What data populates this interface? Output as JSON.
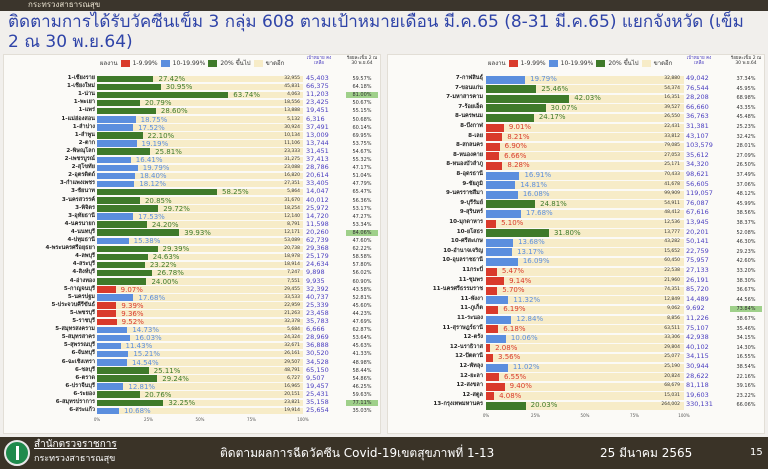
{
  "header": {
    "org": "กระทรวงสาธารณสุข",
    "title": "ติดตามการได้รับวัคซีนเข็ม 3 กลุ่ม 608 ตามเป้าหมายเดือน มี.ค.65 (8-31 มี.ค.65) แยกจังหวัด (เข็ม 2 ณ 30 พ.ย.64)"
  },
  "legend": {
    "title": "ผลงาน",
    "items": [
      {
        "label": "1-9.99%",
        "color": "#d93a2b"
      },
      {
        "label": "10-19.99%",
        "color": "#5b8ede"
      },
      {
        "label": "20% ขึ้นไป",
        "color": "#3f7a2a"
      },
      {
        "label": "ขาดอีก",
        "color": "#f7ecc8"
      }
    ],
    "col_target": "เป้าหมาย คงเหลือ",
    "col_dose2": "ร้อยละเข็ม 2 ณ 30 พ.ย.64"
  },
  "chart_data": [
    {
      "type": "bar",
      "orientation": "horizontal",
      "stacked": true,
      "xlim": [
        0,
        100
      ],
      "x_ticks": [
        "0%",
        "25%",
        "50%",
        "75%",
        "100%"
      ],
      "columns": [
        "province",
        "percent",
        "remaining",
        "target",
        "dose2_percent"
      ],
      "rows": [
        [
          "1-เชียงราย",
          27.42,
          "32,955",
          "45,403",
          "59.57%"
        ],
        [
          "1-เชียงใหม่",
          30.95,
          "45,831",
          "66,375",
          "64.18%"
        ],
        [
          "1-น่าน",
          63.74,
          "4,063",
          "11,203",
          "81.00%"
        ],
        [
          "1-พะเยา",
          20.79,
          "18,556",
          "23,425",
          "50.67%"
        ],
        [
          "1-แพร่",
          28.6,
          "13,888",
          "19,451",
          "55.15%"
        ],
        [
          "1-แม่ฮ่องสอน",
          18.75,
          "5,132",
          "6,316",
          "50.68%"
        ],
        [
          "1-ลำปาง",
          17.52,
          "30,924",
          "37,491",
          "60.14%"
        ],
        [
          "1-ลำพูน",
          22.1,
          "10,134",
          "13,009",
          "69.95%"
        ],
        [
          "2-ตาก",
          19.19,
          "11,106",
          "13,744",
          "53.75%"
        ],
        [
          "2-พิษณุโลก",
          25.81,
          "23,333",
          "31,451",
          "54.67%"
        ],
        [
          "2-เพชรบูรณ์",
          16.41,
          "31,275",
          "37,413",
          "55.32%"
        ],
        [
          "2-สุโขทัย",
          19.79,
          "23,088",
          "28,786",
          "47.17%"
        ],
        [
          "2-อุตรดิตถ์",
          18.4,
          "16,820",
          "20,614",
          "51.04%"
        ],
        [
          "3-กำแพงเพชร",
          18.12,
          "27,351",
          "33,405",
          "47.79%"
        ],
        [
          "3-ชัยนาท",
          58.25,
          "5,864",
          "14,047",
          "65.47%"
        ],
        [
          "3-นครสวรรค์",
          20.85,
          "31,670",
          "40,012",
          "56.36%"
        ],
        [
          "3-พิจิตร",
          29.72,
          "18,254",
          "25,972",
          "53.17%"
        ],
        [
          "3-อุทัยธานี",
          17.53,
          "12,140",
          "14,720",
          "47.27%"
        ],
        [
          "4-นครนายก",
          24.2,
          "8,791",
          "11,598",
          "53.34%"
        ],
        [
          "4-นนทบุรี",
          39.93,
          "12,171",
          "20,260",
          "84.06%"
        ],
        [
          "4-ปทุมธานี",
          15.38,
          "53,089",
          "62,739",
          "47.60%"
        ],
        [
          "4-พระนครศรีอยุธยา",
          29.39,
          "20,738",
          "29,368",
          "62.22%"
        ],
        [
          "4-ลพบุรี",
          24.63,
          "18,978",
          "25,179",
          "58.58%"
        ],
        [
          "4-สระบุรี",
          23.22,
          "18,914",
          "24,634",
          "57.80%"
        ],
        [
          "4-สิงห์บุรี",
          26.78,
          "7,247",
          "9,898",
          "56.02%"
        ],
        [
          "4-อ่างทอง",
          24.0,
          "7,551",
          "9,935",
          "60.90%"
        ],
        [
          "5-กาญจนบุรี",
          9.07,
          "29,455",
          "32,392",
          "43.58%"
        ],
        [
          "5-นครปฐม",
          17.68,
          "33,533",
          "40,737",
          "52.81%"
        ],
        [
          "5-ประจวบคีรีขันธ์",
          9.39,
          "22,959",
          "25,339",
          "45.60%"
        ],
        [
          "5-เพชรบุรี",
          9.36,
          "21,263",
          "23,458",
          "44.23%"
        ],
        [
          "5-ราชบุรี",
          9.52,
          "32,378",
          "35,783",
          "47.69%"
        ],
        [
          "5-สมุทรสงคราม",
          14.73,
          "5,684",
          "6,666",
          "62.87%"
        ],
        [
          "5-สมุทรสาคร",
          16.03,
          "24,324",
          "28,969",
          "53.64%"
        ],
        [
          "5-สุพรรณบุรี",
          11.43,
          "32,671",
          "36,888",
          "45.63%"
        ],
        [
          "6-จันทบุรี",
          15.21,
          "26,161",
          "30,520",
          "41.33%"
        ],
        [
          "6-ฉะเชิงเทรา",
          14.54,
          "29,507",
          "34,528",
          "48.98%"
        ],
        [
          "6-ชลบุรี",
          25.11,
          "48,791",
          "65,150",
          "58.44%"
        ],
        [
          "6-ตราด",
          29.24,
          "6,727",
          "9,507",
          "54.86%"
        ],
        [
          "6-ปราจีนบุรี",
          12.81,
          "16,965",
          "19,457",
          "46.25%"
        ],
        [
          "6-ระยอง",
          20.76,
          "20,151",
          "25,431",
          "59.63%"
        ],
        [
          "6-สมุทรปราการ",
          32.25,
          "23,821",
          "35,158",
          "77.11%"
        ],
        [
          "6-สระแก้ว",
          10.68,
          "19,914",
          "25,654",
          "35.03%"
        ]
      ]
    },
    {
      "type": "bar",
      "orientation": "horizontal",
      "stacked": true,
      "xlim": [
        0,
        100
      ],
      "x_ticks": [
        "0%",
        "25%",
        "50%",
        "75%",
        "100%"
      ],
      "columns": [
        "province",
        "percent",
        "remaining",
        "target",
        "dose2_percent"
      ],
      "rows": [
        [
          "7-กาฬสินธุ์",
          19.79,
          "32,880",
          "49,042",
          "37.34%"
        ],
        [
          "7-ขอนแก่น",
          25.46,
          "54,374",
          "76,544",
          "45.95%"
        ],
        [
          "7-มหาสารคาม",
          42.03,
          "16,351",
          "28,208",
          "68.98%"
        ],
        [
          "7-ร้อยเอ็ด",
          30.07,
          "39,527",
          "66,660",
          "43.35%"
        ],
        [
          "8-นครพนม",
          24.17,
          "26,550",
          "36,763",
          "45.48%"
        ],
        [
          "8-บึงกาฬ",
          9.01,
          "22,431",
          "31,381",
          "25.23%"
        ],
        [
          "8-เลย",
          8.21,
          "33,812",
          "43,107",
          "32.42%"
        ],
        [
          "8-สกลนคร",
          6.9,
          "79,085",
          "103,579",
          "28.01%"
        ],
        [
          "8-หนองคาย",
          6.66,
          "27,053",
          "35,612",
          "27.09%"
        ],
        [
          "8-หนองบัวลำภู",
          8.28,
          "25,171",
          "34,320",
          "26.50%"
        ],
        [
          "8-อุดรธานี",
          16.91,
          "70,433",
          "98,621",
          "37.49%"
        ],
        [
          "9-ชัยภูมิ",
          14.81,
          "41,678",
          "56,605",
          "37.06%"
        ],
        [
          "9-นครราชสีมา",
          16.08,
          "99,909",
          "119,057",
          "48.12%"
        ],
        [
          "9-บุรีรัมย์",
          24.81,
          "54,911",
          "76,087",
          "45.99%"
        ],
        [
          "9-สุรินทร์",
          17.68,
          "48,412",
          "67,616",
          "38.56%"
        ],
        [
          "10-มุกดาหาร",
          5.1,
          "12,536",
          "13,945",
          "38.37%"
        ],
        [
          "10-ยโสธร",
          31.8,
          "13,777",
          "20,201",
          "52.08%"
        ],
        [
          "10-ศรีสะเกษ",
          13.68,
          "43,282",
          "50,141",
          "46.30%"
        ],
        [
          "10-อำนาจเจริญ",
          13.17,
          "15,652",
          "22,759",
          "29.23%"
        ],
        [
          "10-อุบลราชธานี",
          16.09,
          "60,450",
          "75,957",
          "42.60%"
        ],
        [
          "11กระบี่",
          5.47,
          "22,538",
          "27,133",
          "33.20%"
        ],
        [
          "11-ชุมพร",
          9.14,
          "21,960",
          "26,191",
          "38.30%"
        ],
        [
          "11-นครศรีธรรมราช",
          5.7,
          "74,351",
          "85,720",
          "36.67%"
        ],
        [
          "11-พังงา",
          11.32,
          "12,849",
          "14,489",
          "44.56%"
        ],
        [
          "11-ภูเก็ต",
          6.19,
          "9,062",
          "9,692",
          "73.84%"
        ],
        [
          "11-ระนอง",
          12.84,
          "8,856",
          "11,226",
          "38.67%"
        ],
        [
          "11-สุราษฎร์ธานี",
          6.18,
          "63,511",
          "75,107",
          "35.46%"
        ],
        [
          "12-ตรัง",
          10.06,
          "33,306",
          "42,938",
          "34.15%"
        ],
        [
          "12-นราธิวาส",
          2.08,
          "29,804",
          "40,102",
          "14.30%"
        ],
        [
          "12-ปัตตานี",
          3.56,
          "25,077",
          "34,115",
          "16.55%"
        ],
        [
          "12-พัทลุง",
          11.02,
          "25,190",
          "30,944",
          "38.54%"
        ],
        [
          "12-ยะลา",
          6.55,
          "20,824",
          "28,622",
          "22.16%"
        ],
        [
          "12-สงขลา",
          9.4,
          "68,679",
          "81,118",
          "39.16%"
        ],
        [
          "12-สตูล",
          4.08,
          "15,031",
          "19,603",
          "23.22%"
        ],
        [
          "13-กรุงเทพมหานคร",
          20.03,
          "264,002",
          "330,131",
          "66.06%"
        ]
      ]
    }
  ],
  "footer": {
    "org_line1": "สำนักตรวจราชการ",
    "org_line2": "กระทรวงสาธารณสุข",
    "title": "ติดตามผลการฉีดวัคซีน Covid-19เขตสุขภาพที่ 1-13",
    "date": "25 มีนาคม 2565",
    "page": "15"
  }
}
